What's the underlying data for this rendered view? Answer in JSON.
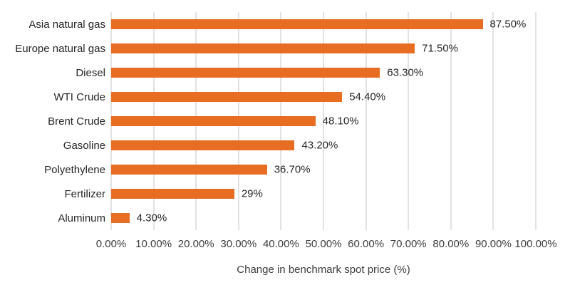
{
  "chart_data": {
    "type": "bar",
    "orientation": "horizontal",
    "title": "",
    "xlabel": "Change in benchmark spot price (%)",
    "ylabel": "",
    "categories": [
      "Asia natural gas",
      "Europe natural gas",
      "Diesel",
      "WTI Crude",
      "Brent Crude",
      "Gasoline",
      "Polyethylene",
      "Fertilizer",
      "Aluminum"
    ],
    "values": [
      87.5,
      71.5,
      63.3,
      54.4,
      48.1,
      43.2,
      36.7,
      29,
      4.3
    ],
    "value_labels": [
      "87.50%",
      "71.50%",
      "63.30%",
      "54.40%",
      "48.10%",
      "43.20%",
      "36.70%",
      "29%",
      "4.30%"
    ],
    "x_ticks": [
      "0.00%",
      "10.00%",
      "20.00%",
      "30.00%",
      "40.00%",
      "50.00%",
      "60.00%",
      "70.00%",
      "80.00%",
      "90.00%",
      "100.00%"
    ],
    "xlim": [
      0,
      100
    ],
    "grid": "vertical",
    "legend": "none",
    "bar_color": "#e76d23",
    "gridline_color": "#e2e2e2",
    "label_color": "#262626",
    "tick_color": "#3d3d3d",
    "background_color": "#ffffff"
  }
}
